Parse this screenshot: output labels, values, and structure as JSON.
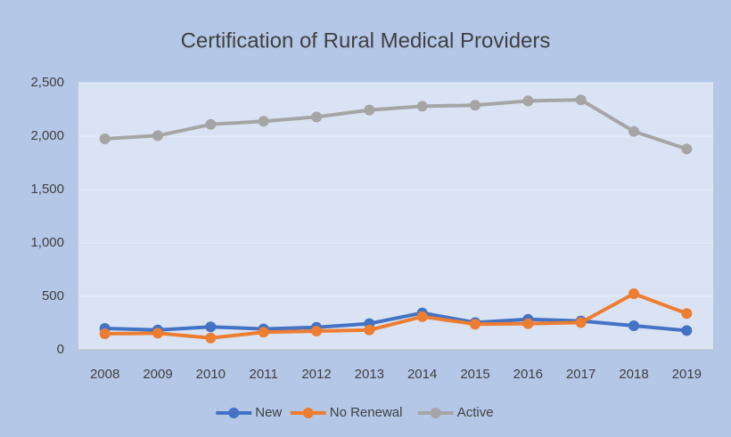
{
  "chart_data": {
    "type": "line",
    "title": "Certification of Rural Medical Providers",
    "categories": [
      "2008",
      "2009",
      "2010",
      "2011",
      "2012",
      "2013",
      "2014",
      "2015",
      "2016",
      "2017",
      "2018",
      "2019"
    ],
    "series": [
      {
        "name": "New",
        "color": "#4472c4",
        "values": [
          200,
          185,
          215,
          195,
          210,
          245,
          345,
          255,
          285,
          270,
          225,
          180
        ]
      },
      {
        "name": "No Renewal",
        "color": "#ed7d31",
        "values": [
          150,
          155,
          110,
          165,
          175,
          185,
          310,
          240,
          245,
          255,
          525,
          340
        ]
      },
      {
        "name": "Active",
        "color": "#a5a5a5",
        "values": [
          1975,
          2005,
          2110,
          2140,
          2180,
          2245,
          2280,
          2290,
          2330,
          2340,
          2045,
          1880
        ]
      }
    ],
    "ylim": [
      0,
      2500
    ],
    "yticks": [
      0,
      500,
      {
        "value": 1000,
        "label": "1,000"
      },
      {
        "value": 1500,
        "label": "1,500"
      },
      {
        "value": 2000,
        "label": "2,000"
      },
      {
        "value": 2500,
        "label": "2,500"
      }
    ],
    "grid": true,
    "legend": "bottom"
  }
}
